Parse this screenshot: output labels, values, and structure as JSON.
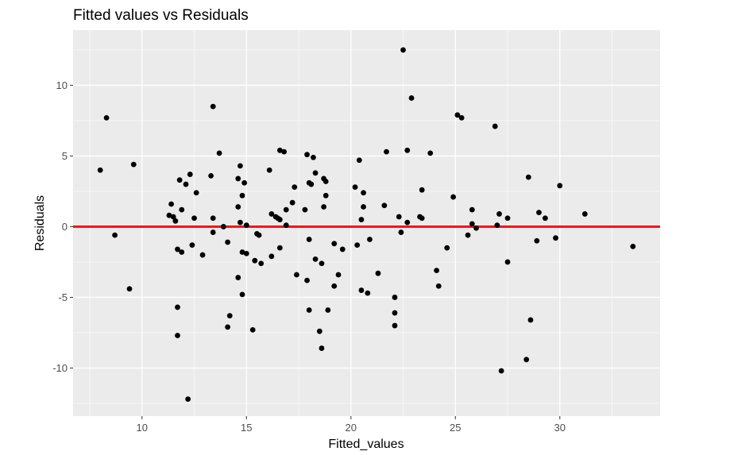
{
  "chart_data": {
    "type": "scatter",
    "title": "Fitted values vs Residuals",
    "xlabel": "Fitted_values",
    "ylabel": "Residuals",
    "xlim": [
      6.7,
      34.8
    ],
    "ylim": [
      -13.4,
      13.9
    ],
    "xticks": [
      10,
      15,
      20,
      25,
      30
    ],
    "yticks": [
      -10,
      -5,
      0,
      5,
      10
    ],
    "xtick_labels": [
      "10",
      "15",
      "20",
      "25",
      "30"
    ],
    "ytick_labels": [
      "-10",
      "-5",
      "0",
      "5",
      "10"
    ],
    "grid": true,
    "reference_line": {
      "y": 0,
      "color": "#ff0000"
    },
    "colors": {
      "panel": "#ebebeb",
      "grid": "#ffffff",
      "points": "#000000"
    },
    "points": [
      [
        8.0,
        4.0
      ],
      [
        8.3,
        7.7
      ],
      [
        8.7,
        -0.6
      ],
      [
        9.4,
        -4.4
      ],
      [
        9.6,
        4.4
      ],
      [
        11.3,
        0.8
      ],
      [
        11.4,
        1.6
      ],
      [
        11.5,
        0.7
      ],
      [
        11.6,
        0.4
      ],
      [
        11.7,
        -1.6
      ],
      [
        11.7,
        -5.7
      ],
      [
        11.7,
        -7.7
      ],
      [
        11.8,
        3.3
      ],
      [
        11.9,
        1.2
      ],
      [
        11.9,
        -1.8
      ],
      [
        12.1,
        3.0
      ],
      [
        12.2,
        -12.2
      ],
      [
        12.3,
        3.7
      ],
      [
        12.4,
        -1.3
      ],
      [
        12.5,
        0.6
      ],
      [
        12.6,
        2.4
      ],
      [
        12.9,
        -2.0
      ],
      [
        13.3,
        3.6
      ],
      [
        13.4,
        8.5
      ],
      [
        13.4,
        0.6
      ],
      [
        13.4,
        -0.4
      ],
      [
        13.7,
        5.2
      ],
      [
        13.9,
        0.0
      ],
      [
        14.1,
        -1.1
      ],
      [
        14.2,
        -6.3
      ],
      [
        14.1,
        -7.1
      ],
      [
        14.6,
        3.4
      ],
      [
        14.6,
        1.4
      ],
      [
        14.6,
        -3.6
      ],
      [
        14.7,
        4.3
      ],
      [
        14.7,
        0.3
      ],
      [
        14.8,
        2.2
      ],
      [
        14.8,
        -4.8
      ],
      [
        14.8,
        -1.8
      ],
      [
        14.9,
        3.1
      ],
      [
        15.0,
        0.1
      ],
      [
        15.0,
        -1.9
      ],
      [
        15.3,
        -7.3
      ],
      [
        15.4,
        -2.4
      ],
      [
        15.5,
        -0.5
      ],
      [
        15.6,
        -0.6
      ],
      [
        15.7,
        -2.6
      ],
      [
        16.1,
        4.0
      ],
      [
        16.2,
        0.9
      ],
      [
        16.2,
        -2.1
      ],
      [
        16.4,
        0.7
      ],
      [
        16.5,
        0.6
      ],
      [
        16.6,
        0.5
      ],
      [
        16.6,
        -1.5
      ],
      [
        16.6,
        5.4
      ],
      [
        16.8,
        5.3
      ],
      [
        16.9,
        1.2
      ],
      [
        16.9,
        0.1
      ],
      [
        17.2,
        1.7
      ],
      [
        17.3,
        2.8
      ],
      [
        17.4,
        -3.4
      ],
      [
        17.8,
        1.2
      ],
      [
        17.9,
        -3.8
      ],
      [
        17.9,
        5.1
      ],
      [
        18.0,
        3.1
      ],
      [
        18.0,
        -5.9
      ],
      [
        18.0,
        -0.9
      ],
      [
        18.1,
        3.0
      ],
      [
        18.2,
        4.9
      ],
      [
        18.3,
        3.8
      ],
      [
        18.3,
        -2.3
      ],
      [
        18.5,
        -7.4
      ],
      [
        18.6,
        -2.6
      ],
      [
        18.6,
        -8.6
      ],
      [
        18.7,
        1.4
      ],
      [
        18.7,
        3.4
      ],
      [
        18.8,
        2.2
      ],
      [
        18.8,
        3.2
      ],
      [
        18.9,
        -5.9
      ],
      [
        19.2,
        -1.2
      ],
      [
        19.2,
        -4.2
      ],
      [
        19.4,
        -3.4
      ],
      [
        19.6,
        -1.6
      ],
      [
        20.2,
        2.8
      ],
      [
        20.3,
        -1.3
      ],
      [
        20.4,
        4.7
      ],
      [
        20.5,
        0.5
      ],
      [
        20.5,
        -4.5
      ],
      [
        20.6,
        2.4
      ],
      [
        20.6,
        1.4
      ],
      [
        20.8,
        -4.7
      ],
      [
        20.9,
        -0.9
      ],
      [
        21.3,
        -3.3
      ],
      [
        21.6,
        1.5
      ],
      [
        21.7,
        5.3
      ],
      [
        22.1,
        -5.0
      ],
      [
        22.1,
        -6.1
      ],
      [
        22.1,
        -7.0
      ],
      [
        22.3,
        0.7
      ],
      [
        22.4,
        -0.4
      ],
      [
        22.5,
        12.5
      ],
      [
        22.7,
        5.4
      ],
      [
        22.7,
        0.3
      ],
      [
        22.9,
        9.1
      ],
      [
        23.3,
        0.7
      ],
      [
        23.4,
        0.6
      ],
      [
        23.4,
        2.6
      ],
      [
        23.8,
        5.2
      ],
      [
        24.1,
        -3.1
      ],
      [
        24.2,
        -4.2
      ],
      [
        24.6,
        -1.5
      ],
      [
        24.9,
        2.1
      ],
      [
        25.1,
        7.9
      ],
      [
        25.3,
        7.7
      ],
      [
        25.6,
        -0.6
      ],
      [
        25.8,
        1.2
      ],
      [
        25.8,
        0.2
      ],
      [
        26.0,
        -0.1
      ],
      [
        26.9,
        7.1
      ],
      [
        27.0,
        0.1
      ],
      [
        27.1,
        0.9
      ],
      [
        27.2,
        -10.2
      ],
      [
        27.5,
        0.6
      ],
      [
        27.5,
        -2.5
      ],
      [
        28.4,
        -9.4
      ],
      [
        28.5,
        3.5
      ],
      [
        28.6,
        -6.6
      ],
      [
        28.9,
        -1.0
      ],
      [
        29.0,
        1.0
      ],
      [
        29.3,
        0.6
      ],
      [
        29.8,
        -0.8
      ],
      [
        30.0,
        2.9
      ],
      [
        31.2,
        0.9
      ],
      [
        33.5,
        -1.4
      ]
    ]
  }
}
